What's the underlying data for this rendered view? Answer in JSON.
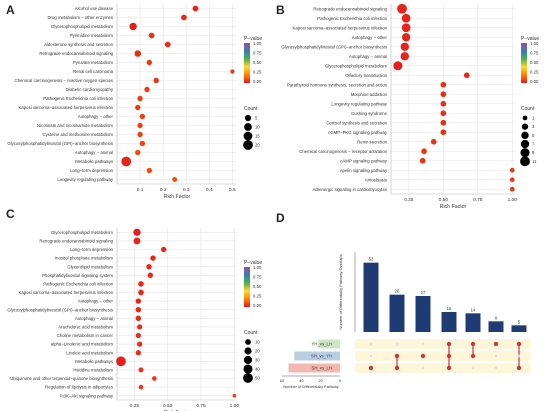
{
  "colors": {
    "scale": [
      "#e41a1c",
      "#ff7f00",
      "#ffd92f",
      "#4daf4a",
      "#377eb8",
      "#984ea3"
    ],
    "grid": "#e3e3e3",
    "bar": "#1f3b73",
    "dot_on": "#c4393f",
    "dot_off": "#dcdcdc",
    "band": "#fdf6d8",
    "set_green": "#cde6c3",
    "set_blue": "#b8cfe3",
    "set_pink": "#f2b8b0"
  },
  "chart_data": [
    {
      "panel": "A",
      "type": "scatter",
      "xlabel": "Rich Factor",
      "xlim": [
        0,
        0.52
      ],
      "xticks": [
        0.1,
        0.2,
        0.3,
        0.4,
        0.5
      ],
      "legend_pvalue_title": "P−value",
      "pvalue_ticks": [
        "1.00",
        "0.75",
        "0.50",
        "0.25",
        "0.00"
      ],
      "legend_count_title": "Count",
      "count_ticks": [
        5,
        10,
        15,
        20
      ],
      "points": [
        {
          "y": "Alcohol use disease",
          "x": 0.34,
          "count": 4,
          "p": 0.02
        },
        {
          "y": "Drug metabolism − other enzymes",
          "x": 0.29,
          "count": 4,
          "p": 0.03
        },
        {
          "y": "Glycerophospholipid metabolism",
          "x": 0.07,
          "count": 9,
          "p": 0.01
        },
        {
          "y": "Pyrimidine metabolism",
          "x": 0.15,
          "count": 4,
          "p": 0.05
        },
        {
          "y": "Aldosterone synthesis and secretion",
          "x": 0.22,
          "count": 4,
          "p": 0.04
        },
        {
          "y": "Retrograde endocannabinoid signaling",
          "x": 0.09,
          "count": 6,
          "p": 0.04
        },
        {
          "y": "Pyruvate metabolism",
          "x": 0.14,
          "count": 3,
          "p": 0.06
        },
        {
          "y": "Renal cell carcinoma",
          "x": 0.5,
          "count": 1,
          "p": 0.05
        },
        {
          "y": "Chemical carcinogenesis − reactive oxygen species",
          "x": 0.17,
          "count": 3,
          "p": 0.05
        },
        {
          "y": "Diabetic cardiomyopathy",
          "x": 0.13,
          "count": 3,
          "p": 0.06
        },
        {
          "y": "Pathogenic Escherichia coli infection",
          "x": 0.1,
          "count": 3,
          "p": 0.07
        },
        {
          "y": "Kaposi sarcoma−associated herpesvirus infection",
          "x": 0.09,
          "count": 3,
          "p": 0.07
        },
        {
          "y": "Autophagy − other",
          "x": 0.11,
          "count": 3,
          "p": 0.08
        },
        {
          "y": "Nicotinate and nicotinamide metabolism",
          "x": 0.1,
          "count": 3,
          "p": 0.08
        },
        {
          "y": "Cysteine and methionine metabolism",
          "x": 0.1,
          "count": 3,
          "p": 0.08
        },
        {
          "y": "Glycosylphosphatidylinositol (GPI)−anchor biosynthesis",
          "x": 0.11,
          "count": 3,
          "p": 0.09
        },
        {
          "y": "Autophagy − animal",
          "x": 0.09,
          "count": 3,
          "p": 0.09
        },
        {
          "y": "Metabolic pathways",
          "x": 0.04,
          "count": 20,
          "p": 0.02
        },
        {
          "y": "Long−term depression",
          "x": 0.14,
          "count": 3,
          "p": 0.1
        },
        {
          "y": "Longevity regulating pathway",
          "x": 0.25,
          "count": 2,
          "p": 0.1
        }
      ]
    },
    {
      "panel": "B",
      "type": "scatter",
      "xlabel": "Rich Factor",
      "xlim": [
        0.12,
        1.02
      ],
      "xticks": [
        0.25,
        0.5,
        0.75,
        1.0
      ],
      "xticklabels": [
        "0.25",
        "0.50",
        "0.75",
        "1.00"
      ],
      "legend_pvalue_title": "P−value",
      "pvalue_ticks": [
        "1.00",
        "0.75",
        "0.50",
        "0.25",
        "0.00"
      ],
      "legend_count_title": "Count",
      "count_ticks": [
        1,
        3,
        5,
        7,
        9,
        11
      ],
      "points": [
        {
          "y": "Retrograde endocannabinoid signaling",
          "x": 0.2,
          "count": 11,
          "p": 0.02
        },
        {
          "y": "Pathogenic Escherichia coli infection",
          "x": 0.23,
          "count": 8,
          "p": 0.02
        },
        {
          "y": "Kaposi sarcoma−associated herpesvirus infection",
          "x": 0.23,
          "count": 8,
          "p": 0.02
        },
        {
          "y": "Autophagy − other",
          "x": 0.23,
          "count": 7,
          "p": 0.02
        },
        {
          "y": "Glycosylphosphatidylinositol (GPI)−anchor biosynthesis",
          "x": 0.22,
          "count": 7,
          "p": 0.02
        },
        {
          "y": "Autophagy − animal",
          "x": 0.22,
          "count": 7,
          "p": 0.02
        },
        {
          "y": "Glycerophospholipid metabolism",
          "x": 0.17,
          "count": 9,
          "p": 0.01
        },
        {
          "y": "Olfactory transduction",
          "x": 0.67,
          "count": 2,
          "p": 0.03
        },
        {
          "y": "Parathyroid hormone synthesis, secretion and action",
          "x": 0.5,
          "count": 2,
          "p": 0.04
        },
        {
          "y": "Morphine addiction",
          "x": 0.5,
          "count": 2,
          "p": 0.04
        },
        {
          "y": "Longevity regulating pathway",
          "x": 0.5,
          "count": 2,
          "p": 0.04
        },
        {
          "y": "Cushing syndrome",
          "x": 0.5,
          "count": 2,
          "p": 0.04
        },
        {
          "y": "Cortisol synthesis and secretion",
          "x": 0.5,
          "count": 2,
          "p": 0.04
        },
        {
          "y": "cGMP−PKG signaling pathway",
          "x": 0.5,
          "count": 2,
          "p": 0.04
        },
        {
          "y": "Renin secretion",
          "x": 0.43,
          "count": 2,
          "p": 0.05
        },
        {
          "y": "Chemical carcinogenesis − receptor activation",
          "x": 0.36,
          "count": 2,
          "p": 0.05
        },
        {
          "y": "cAMP signaling pathway",
          "x": 0.35,
          "count": 2,
          "p": 0.05
        },
        {
          "y": "Apelin signaling pathway",
          "x": 1.0,
          "count": 1,
          "p": 0.06
        },
        {
          "y": "Amoebiasis",
          "x": 1.0,
          "count": 1,
          "p": 0.06
        },
        {
          "y": "Adrenergic signaling in cardiomyocytes",
          "x": 1.0,
          "count": 1,
          "p": 0.06
        }
      ]
    },
    {
      "panel": "C",
      "type": "scatter",
      "xlabel": "Rich Factor",
      "xlim": [
        0.12,
        1.02
      ],
      "xticks": [
        0.25,
        0.5,
        0.75,
        1.0
      ],
      "xticklabels": [
        "0.25",
        "0.50",
        "0.75",
        "1.00"
      ],
      "legend_pvalue_title": "P−value",
      "pvalue_ticks": [
        "1.00",
        "0.75",
        "0.50",
        "0.25",
        "0.00"
      ],
      "legend_count_title": "Count",
      "count_ticks": [
        10,
        20,
        30,
        40,
        50
      ],
      "points": [
        {
          "y": "Glycerophospholipid metabolism",
          "x": 0.27,
          "count": 22,
          "p": 0.01
        },
        {
          "y": "Retrograde endocannabinoid signaling",
          "x": 0.27,
          "count": 18,
          "p": 0.02
        },
        {
          "y": "Long−term depression",
          "x": 0.47,
          "count": 8,
          "p": 0.03
        },
        {
          "y": "Inositol phosphate metabolism",
          "x": 0.39,
          "count": 8,
          "p": 0.03
        },
        {
          "y": "Glycerolipid metabolism",
          "x": 0.36,
          "count": 8,
          "p": 0.03
        },
        {
          "y": "Phosphatidylinositol signaling system",
          "x": 0.37,
          "count": 8,
          "p": 0.03
        },
        {
          "y": "Pathogenic Escherichia coli infection",
          "x": 0.3,
          "count": 9,
          "p": 0.03
        },
        {
          "y": "Kaposi sarcoma−associated herpesvirus infection",
          "x": 0.3,
          "count": 9,
          "p": 0.03
        },
        {
          "y": "Autophagy − other",
          "x": 0.28,
          "count": 8,
          "p": 0.03
        },
        {
          "y": "Glycosylphosphatidylinositol (GPI)−anchor biosynthesis",
          "x": 0.28,
          "count": 8,
          "p": 0.03
        },
        {
          "y": "Autophagy − animal",
          "x": 0.28,
          "count": 8,
          "p": 0.03
        },
        {
          "y": "Arachidonic acid metabolism",
          "x": 0.29,
          "count": 7,
          "p": 0.04
        },
        {
          "y": "Choline metabolism in cancer",
          "x": 0.28,
          "count": 7,
          "p": 0.04
        },
        {
          "y": "alpha−Linolenic acid metabolism",
          "x": 0.29,
          "count": 7,
          "p": 0.04
        },
        {
          "y": "Linoleic acid metabolism",
          "x": 0.28,
          "count": 7,
          "p": 0.04
        },
        {
          "y": "Metabolic pathways",
          "x": 0.15,
          "count": 50,
          "p": 0.01
        },
        {
          "y": "Histidine metabolism",
          "x": 0.3,
          "count": 6,
          "p": 0.05
        },
        {
          "y": "Ubiquinone and other terpenoid−quinone biosynthesis",
          "x": 0.4,
          "count": 4,
          "p": 0.05
        },
        {
          "y": "Regulation of lipolysis in adipocytes",
          "x": 0.3,
          "count": 4,
          "p": 0.06
        },
        {
          "y": "PI3K−Akt signaling pathway",
          "x": 1.0,
          "count": 1,
          "p": 0.07
        }
      ]
    },
    {
      "panel": "D",
      "type": "bar",
      "ylabel": "Number of Differentially Pathway Overlaps",
      "xlabel": "Number of Differentially Pathway",
      "set_axis_ticks": [
        "60",
        "40",
        "20",
        "0"
      ],
      "values": [
        52,
        28,
        27,
        15,
        14,
        8,
        5
      ],
      "sets": [
        "YH_vs_LH",
        "SH_vs_YH",
        "SH_vs_LH"
      ],
      "set_sizes": [
        30,
        63,
        71
      ],
      "intersections": [
        [
          2
        ],
        [
          1,
          2
        ],
        [
          1
        ],
        [
          0,
          1,
          2
        ],
        [
          0,
          1
        ],
        [
          0
        ],
        [
          0,
          2
        ]
      ]
    }
  ]
}
